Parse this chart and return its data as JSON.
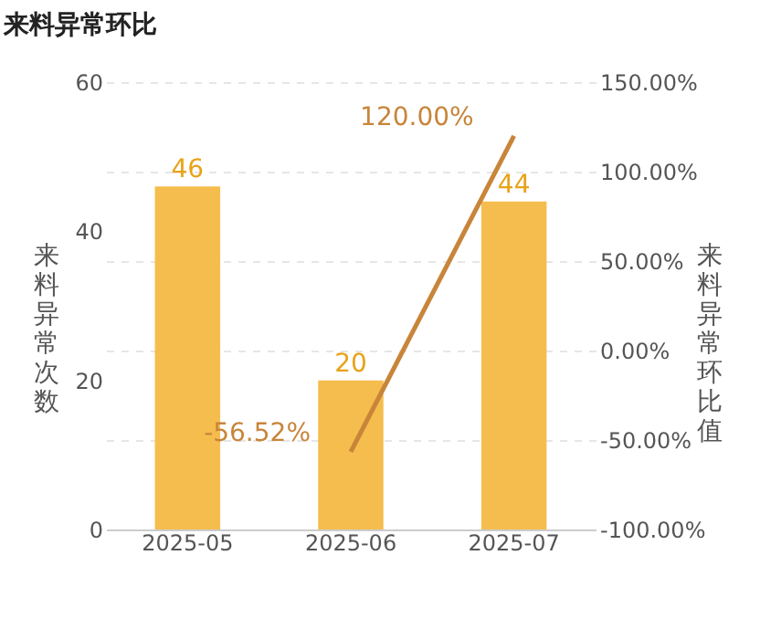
{
  "chart_data": {
    "type": "bar",
    "title": "来料异常环比",
    "ylabel": "来料异常次数",
    "y2label": "来料异常环比值",
    "categories": [
      "2025-05",
      "2025-06",
      "2025-07"
    ],
    "series": [
      {
        "color": "#f5bd4d",
        "values": [
          46,
          20,
          44
        ]
      },
      {
        "type": "line",
        "axis": "y2",
        "color": "#c8853a",
        "values": [
          null,
          -56.52,
          120
        ],
        "value_labels": [
          null,
          "-56.52%",
          "120.00%"
        ]
      }
    ],
    "ylim": [
      0,
      60
    ],
    "yticks": [
      0,
      20,
      40,
      60
    ],
    "y2lim": [
      -100,
      150
    ],
    "y2ticks": [
      {
        "value": -100,
        "label": "-100.00%"
      },
      {
        "value": -50,
        "label": "-50.00%"
      },
      {
        "value": 0,
        "label": "0.00%"
      },
      {
        "value": 50,
        "label": "50.00%"
      },
      {
        "value": 100,
        "label": "100.00%"
      },
      {
        "value": 150,
        "label": "150.00%"
      }
    ],
    "grid": true,
    "data_labels": true,
    "legend": false,
    "marker": "none",
    "line_style": "solid"
  }
}
